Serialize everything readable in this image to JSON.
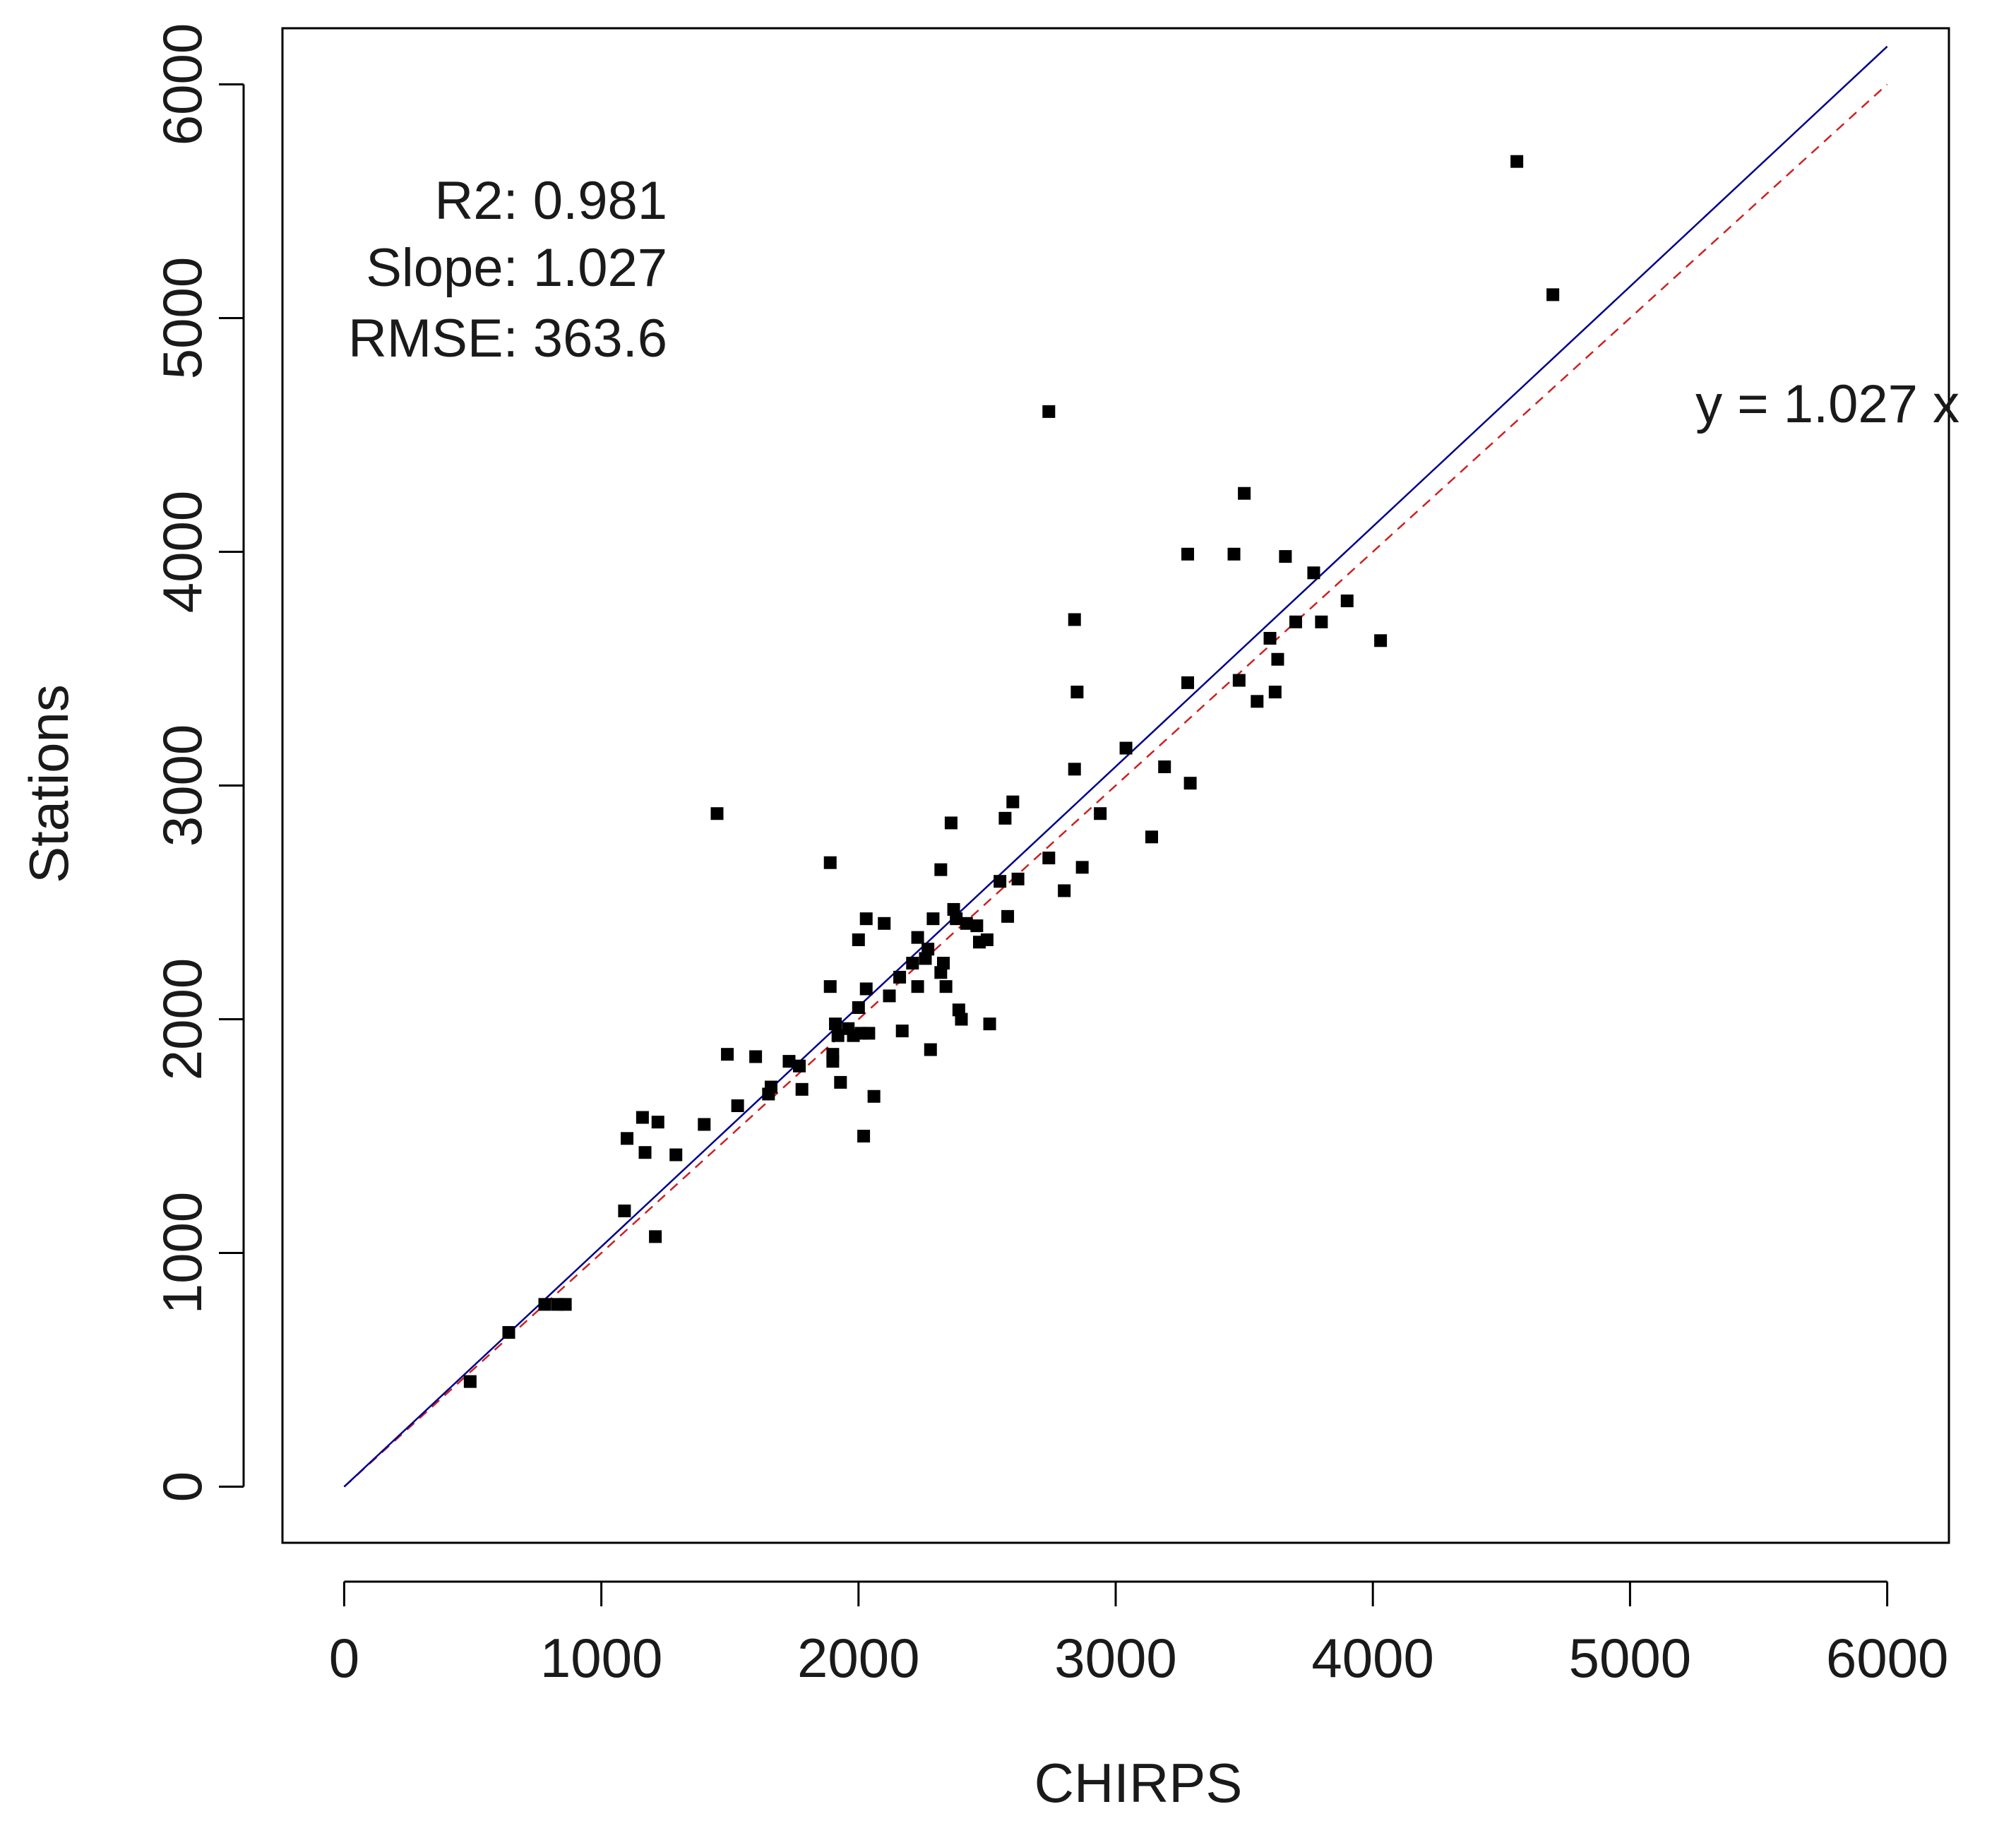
{
  "chart_data": {
    "type": "scatter",
    "title": "",
    "xlabel": "CHIRPS",
    "ylabel": "Stations",
    "xlim": [
      -240,
      6240
    ],
    "ylim": [
      -240,
      6240
    ],
    "xticks": [
      0,
      1000,
      2000,
      3000,
      4000,
      5000,
      6000
    ],
    "yticks": [
      0,
      1000,
      2000,
      3000,
      4000,
      5000,
      6000
    ],
    "xtick_labels": [
      "0",
      "1000",
      "2000",
      "3000",
      "4000",
      "5000",
      "6000"
    ],
    "ytick_labels": [
      "0",
      "1000",
      "2000",
      "3000",
      "4000",
      "5000",
      "6000"
    ],
    "grid": false,
    "stats": {
      "r2": "R2: 0.981",
      "slope": "Slope: 1.027",
      "rmse": "RMSE: 363.6"
    },
    "equation": "y = 1.027 x",
    "fit_line": {
      "slope": 1.027,
      "color": "#00008b",
      "style": "solid"
    },
    "identity_line": {
      "slope": 1.0,
      "color": "#cc2222",
      "style": "dashed"
    },
    "point_color": "#000000",
    "points": [
      [
        490,
        450
      ],
      [
        640,
        660
      ],
      [
        780,
        780
      ],
      [
        830,
        780
      ],
      [
        860,
        780
      ],
      [
        1090,
        1180
      ],
      [
        1100,
        1490
      ],
      [
        1160,
        1580
      ],
      [
        1170,
        1430
      ],
      [
        1210,
        1070
      ],
      [
        1220,
        1560
      ],
      [
        1290,
        1420
      ],
      [
        1400,
        1550
      ],
      [
        1450,
        2880
      ],
      [
        1490,
        1850
      ],
      [
        1530,
        1630
      ],
      [
        1600,
        1840
      ],
      [
        1650,
        1680
      ],
      [
        1660,
        1710
      ],
      [
        1730,
        1820
      ],
      [
        1770,
        1800
      ],
      [
        1780,
        1700
      ],
      [
        1890,
        2670
      ],
      [
        1890,
        2140
      ],
      [
        1900,
        1850
      ],
      [
        1900,
        1820
      ],
      [
        1910,
        1980
      ],
      [
        1920,
        1930
      ],
      [
        1930,
        1730
      ],
      [
        1960,
        1960
      ],
      [
        1980,
        1930
      ],
      [
        2000,
        2340
      ],
      [
        2000,
        2050
      ],
      [
        2010,
        1940
      ],
      [
        2020,
        1500
      ],
      [
        2030,
        2430
      ],
      [
        2030,
        2130
      ],
      [
        2040,
        1940
      ],
      [
        2060,
        1670
      ],
      [
        2100,
        2410
      ],
      [
        2120,
        2100
      ],
      [
        2160,
        2180
      ],
      [
        2170,
        1950
      ],
      [
        2210,
        2240
      ],
      [
        2230,
        2140
      ],
      [
        2230,
        2350
      ],
      [
        2260,
        2260
      ],
      [
        2270,
        2300
      ],
      [
        2280,
        1870
      ],
      [
        2290,
        2430
      ],
      [
        2320,
        2200
      ],
      [
        2320,
        2640
      ],
      [
        2330,
        2240
      ],
      [
        2340,
        2140
      ],
      [
        2360,
        2840
      ],
      [
        2370,
        2470
      ],
      [
        2380,
        2430
      ],
      [
        2390,
        2040
      ],
      [
        2400,
        2000
      ],
      [
        2420,
        2410
      ],
      [
        2460,
        2400
      ],
      [
        2470,
        2330
      ],
      [
        2500,
        2340
      ],
      [
        2510,
        1980
      ],
      [
        2550,
        2590
      ],
      [
        2570,
        2860
      ],
      [
        2580,
        2440
      ],
      [
        2600,
        2930
      ],
      [
        2620,
        2600
      ],
      [
        2740,
        2690
      ],
      [
        2740,
        4600
      ],
      [
        2800,
        2550
      ],
      [
        2840,
        3710
      ],
      [
        2840,
        3070
      ],
      [
        2850,
        3400
      ],
      [
        2870,
        2650
      ],
      [
        2940,
        2880
      ],
      [
        3040,
        3160
      ],
      [
        3140,
        2780
      ],
      [
        3190,
        3080
      ],
      [
        3280,
        3440
      ],
      [
        3280,
        3990
      ],
      [
        3290,
        3010
      ],
      [
        3460,
        3990
      ],
      [
        3480,
        3450
      ],
      [
        3500,
        4250
      ],
      [
        3550,
        3360
      ],
      [
        3600,
        3630
      ],
      [
        3620,
        3400
      ],
      [
        3630,
        3540
      ],
      [
        3660,
        3980
      ],
      [
        3700,
        3700
      ],
      [
        3770,
        3910
      ],
      [
        3800,
        3700
      ],
      [
        3900,
        3790
      ],
      [
        4030,
        3620
      ],
      [
        4560,
        5670
      ],
      [
        4700,
        5100
      ]
    ]
  }
}
